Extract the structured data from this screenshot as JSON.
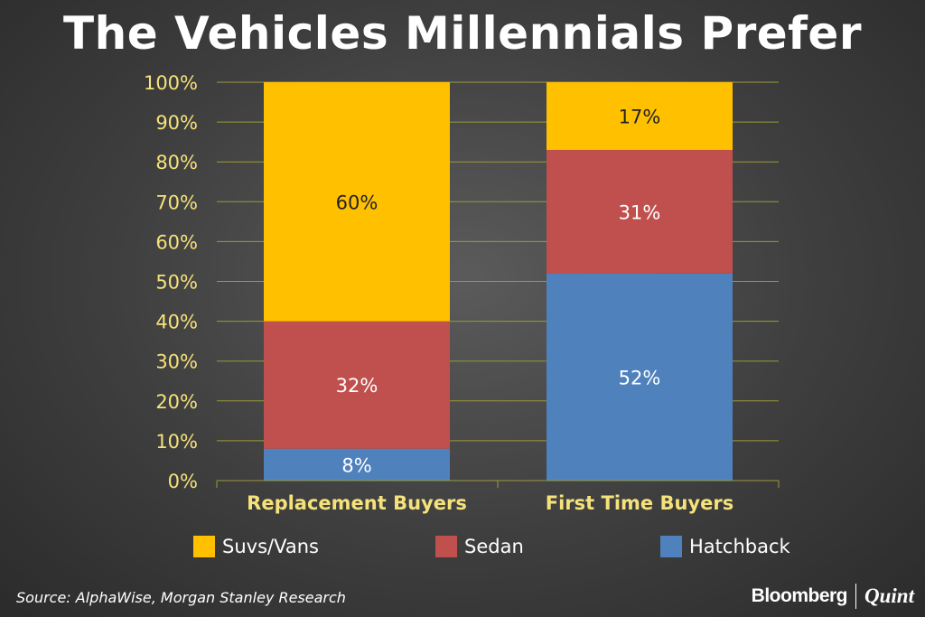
{
  "title": "The Vehicles Millennials Prefer",
  "colors": {
    "suvs": "#ffc000",
    "sedan": "#c0504d",
    "hatchback": "#4f81bd",
    "axis_text": "#f5e27a",
    "grid": "#9a9a3a"
  },
  "chart_data": {
    "type": "bar",
    "stacked": true,
    "title": "The Vehicles Millennials Prefer",
    "categories": [
      "Replacement Buyers",
      "First Time Buyers"
    ],
    "series": [
      {
        "name": "Hatchback",
        "values": [
          8,
          52
        ],
        "labels": [
          "8%",
          "52%"
        ],
        "color": "#4f81bd",
        "label_color": "#ffffff"
      },
      {
        "name": "Sedan",
        "values": [
          32,
          31
        ],
        "labels": [
          "32%",
          "31%"
        ],
        "color": "#c0504d",
        "label_color": "#ffffff"
      },
      {
        "name": "Suvs/Vans",
        "values": [
          60,
          17
        ],
        "labels": [
          "60%",
          "17%"
        ],
        "color": "#ffc000",
        "label_color": "#222222"
      }
    ],
    "yticks": [
      "0%",
      "10%",
      "20%",
      "30%",
      "40%",
      "50%",
      "60%",
      "70%",
      "80%",
      "90%",
      "100%"
    ],
    "ylim": [
      0,
      100
    ],
    "xlabel": "",
    "ylabel": "",
    "grid": true
  },
  "legend": [
    {
      "label": "Suvs/Vans",
      "color": "#ffc000"
    },
    {
      "label": "Sedan",
      "color": "#c0504d"
    },
    {
      "label": "Hatchback",
      "color": "#4f81bd"
    }
  ],
  "source": "Source: AlphaWise, Morgan Stanley Research",
  "brand": {
    "primary": "Bloomberg",
    "secondary": "Quint"
  }
}
